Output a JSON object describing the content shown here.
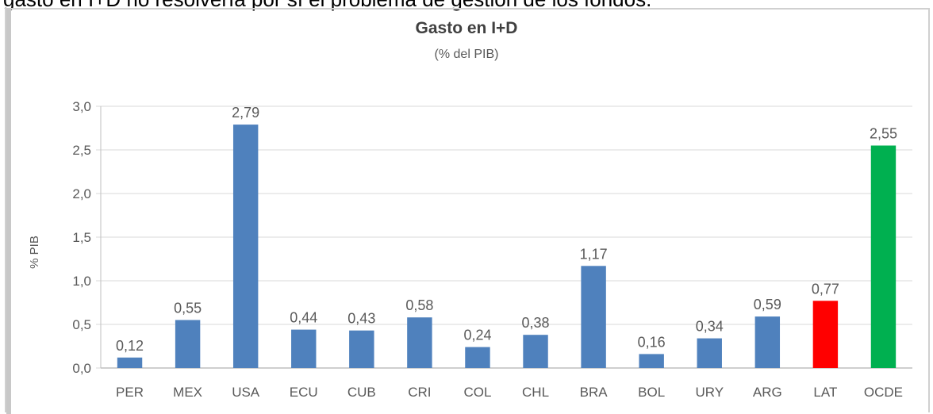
{
  "header_text": "gasto en I+D no resolvería por sí el problema de gestión de los fondos.",
  "chart_data": {
    "type": "bar",
    "title": "Gasto en I+D",
    "subtitle": "(% del PIB)",
    "xlabel": "",
    "ylabel": "% PIB",
    "ylim": [
      0,
      3.0
    ],
    "yticks": [
      "0,0",
      "0,5",
      "1,0",
      "1,5",
      "2,0",
      "2,5",
      "3,0"
    ],
    "categories": [
      "PER",
      "MEX",
      "USA",
      "ECU",
      "CUB",
      "CRI",
      "COL",
      "CHL",
      "BRA",
      "BOL",
      "URY",
      "ARG",
      "LAT",
      "OCDE"
    ],
    "values": [
      0.12,
      0.55,
      2.79,
      0.44,
      0.43,
      0.58,
      0.24,
      0.38,
      1.17,
      0.16,
      0.34,
      0.59,
      0.77,
      2.55
    ],
    "labels": [
      "0,12",
      "0,55",
      "2,79",
      "0,44",
      "0,43",
      "0,58",
      "0,24",
      "0,38",
      "1,17",
      "0,16",
      "0,34",
      "0,59",
      "0,77",
      "2,55"
    ],
    "colors": [
      "#4f81bd",
      "#4f81bd",
      "#4f81bd",
      "#4f81bd",
      "#4f81bd",
      "#4f81bd",
      "#4f81bd",
      "#4f81bd",
      "#4f81bd",
      "#4f81bd",
      "#4f81bd",
      "#4f81bd",
      "#ff0000",
      "#00b050"
    ],
    "grid": true,
    "legend": "none"
  }
}
